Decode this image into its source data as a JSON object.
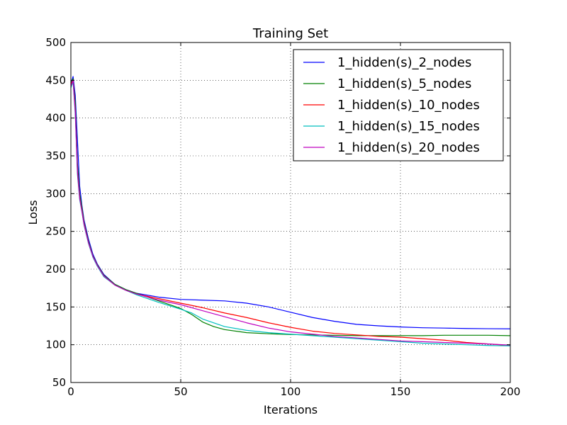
{
  "chart_data": {
    "type": "line",
    "title": "Training Set",
    "xlabel": "Iterations",
    "ylabel": "Loss",
    "xlim": [
      0,
      200
    ],
    "ylim": [
      50,
      500
    ],
    "xticks": [
      0,
      50,
      100,
      150,
      200
    ],
    "yticks": [
      50,
      100,
      150,
      200,
      250,
      300,
      350,
      400,
      450,
      500
    ],
    "grid": true,
    "legend_position": "top-right",
    "series": [
      {
        "name": "1_hidden(s)_2_nodes",
        "color": "#0000ff",
        "x": [
          0,
          1,
          2,
          3,
          4,
          5,
          6,
          8,
          10,
          12,
          15,
          20,
          25,
          30,
          40,
          50,
          60,
          70,
          80,
          90,
          100,
          110,
          120,
          130,
          140,
          150,
          160,
          170,
          180,
          190,
          200
        ],
        "y": [
          445,
          455,
          430,
          370,
          310,
          285,
          265,
          240,
          220,
          207,
          193,
          180,
          173,
          168,
          163,
          160,
          159,
          158,
          155,
          150,
          143,
          136,
          131,
          127,
          125,
          123.5,
          122.5,
          122,
          121.5,
          121.2,
          121
        ]
      },
      {
        "name": "1_hidden(s)_5_nodes",
        "color": "#008000",
        "x": [
          0,
          1,
          2,
          3,
          4,
          5,
          6,
          8,
          10,
          12,
          15,
          20,
          25,
          30,
          40,
          50,
          55,
          60,
          65,
          70,
          80,
          90,
          100,
          110,
          120,
          130,
          140,
          150,
          160,
          170,
          180,
          190,
          200
        ],
        "y": [
          445,
          452,
          420,
          340,
          300,
          282,
          262,
          237,
          218,
          206,
          192,
          180,
          173,
          168,
          158,
          148,
          140,
          130,
          124,
          120,
          116,
          114.5,
          113.5,
          113,
          112.5,
          112,
          112,
          112,
          112,
          112.5,
          112.5,
          112.5,
          112
        ]
      },
      {
        "name": "1_hidden(s)_10_nodes",
        "color": "#ff0000",
        "x": [
          0,
          1,
          2,
          3,
          4,
          5,
          6,
          8,
          10,
          12,
          15,
          20,
          25,
          30,
          40,
          50,
          60,
          70,
          80,
          90,
          100,
          110,
          120,
          130,
          140,
          150,
          160,
          170,
          180,
          190,
          200
        ],
        "y": [
          445,
          450,
          410,
          330,
          295,
          278,
          260,
          235,
          217,
          205,
          191,
          179,
          172,
          167,
          161,
          155,
          149,
          142,
          136,
          129,
          123,
          118,
          115,
          113,
          111,
          110,
          108,
          106,
          103,
          101,
          99
        ]
      },
      {
        "name": "1_hidden(s)_15_nodes",
        "color": "#00bfbf",
        "x": [
          0,
          1,
          2,
          3,
          4,
          5,
          6,
          8,
          10,
          12,
          15,
          20,
          25,
          30,
          40,
          50,
          55,
          60,
          70,
          80,
          90,
          100,
          110,
          120,
          130,
          140,
          150,
          160,
          170,
          180,
          190,
          200
        ],
        "y": [
          440,
          448,
          405,
          325,
          292,
          276,
          258,
          234,
          216,
          204,
          190,
          179,
          172,
          166,
          156,
          147,
          142,
          134,
          124,
          119,
          116,
          114,
          112,
          110,
          108,
          106,
          104,
          102,
          101,
          100,
          99,
          98.5
        ]
      },
      {
        "name": "1_hidden(s)_20_nodes",
        "color": "#bf00bf",
        "x": [
          0,
          1,
          2,
          3,
          4,
          5,
          6,
          8,
          10,
          12,
          15,
          20,
          25,
          30,
          40,
          50,
          60,
          70,
          80,
          90,
          100,
          110,
          120,
          130,
          140,
          150,
          160,
          170,
          180,
          190,
          200
        ],
        "y": [
          442,
          450,
          408,
          328,
          294,
          277,
          259,
          235,
          217,
          205,
          191,
          179,
          172,
          167,
          159,
          153,
          145,
          137,
          129,
          122,
          117,
          114,
          111,
          109,
          107,
          105,
          104,
          103,
          102,
          101,
          99.5
        ]
      }
    ]
  }
}
